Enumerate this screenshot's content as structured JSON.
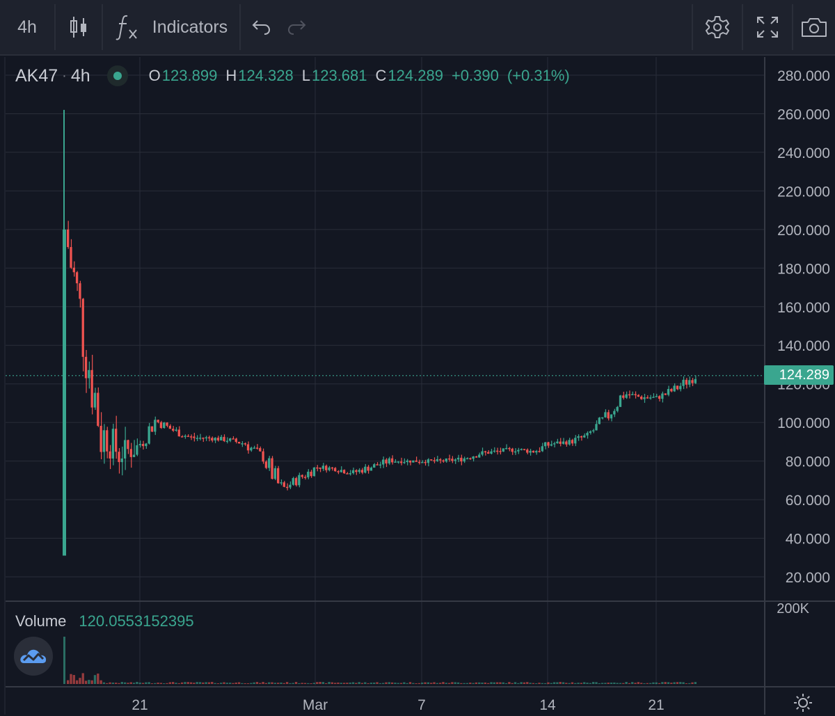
{
  "toolbar": {
    "interval": "4h",
    "indicators_label": "Indicators",
    "icons": [
      "candles-icon",
      "fx-icon",
      "undo-icon",
      "redo-icon",
      "settings-gear-icon",
      "fullscreen-icon",
      "camera-icon"
    ]
  },
  "legend": {
    "symbol": "AK47",
    "separator": "·",
    "timeframe": "4h",
    "open_label": "O",
    "open": "123.899",
    "high_label": "H",
    "high": "124.328",
    "low_label": "L",
    "low": "123.681",
    "close_label": "C",
    "close": "124.289",
    "change": "+0.390",
    "change_pct": "(+0.31%)"
  },
  "volume": {
    "label": "Volume",
    "value": "120.0553152395",
    "scale_label": "200K"
  },
  "last_price": "124.289",
  "colors": {
    "up": "#3aa68f",
    "down": "#ef5350",
    "background": "#131722",
    "toolbar": "#1e222d",
    "grid": "#2a2e39"
  },
  "chart_data": {
    "type": "candlestick",
    "price_axis_labels": [
      "280.000",
      "260.000",
      "240.000",
      "220.000",
      "200.000",
      "180.000",
      "160.000",
      "140.000",
      "120.000",
      "100.000",
      "80.000",
      "60.000",
      "40.000",
      "20.000"
    ],
    "time_axis_labels": [
      "21",
      "Mar",
      "7",
      "14",
      "21"
    ],
    "ylim": [
      20,
      280
    ],
    "last_price": 124.289,
    "approx_close_series": [
      {
        "date": "Feb 16",
        "close": 200
      },
      {
        "date": "Feb 17",
        "close": 148
      },
      {
        "date": "Feb 18",
        "close": 96
      },
      {
        "date": "Feb 19",
        "close": 84
      },
      {
        "date": "Feb 20",
        "close": 87
      },
      {
        "date": "Feb 21",
        "close": 101
      },
      {
        "date": "Feb 22",
        "close": 96
      },
      {
        "date": "Feb 23",
        "close": 92
      },
      {
        "date": "Feb 24",
        "close": 92
      },
      {
        "date": "Feb 25",
        "close": 91
      },
      {
        "date": "Feb 26",
        "close": 89
      },
      {
        "date": "Feb 27",
        "close": 82
      },
      {
        "date": "Feb 28",
        "close": 65
      },
      {
        "date": "Mar 1",
        "close": 71
      },
      {
        "date": "Mar 2",
        "close": 77
      },
      {
        "date": "Mar 3",
        "close": 76
      },
      {
        "date": "Mar 4",
        "close": 74
      },
      {
        "date": "Mar 5",
        "close": 77
      },
      {
        "date": "Mar 6",
        "close": 80
      },
      {
        "date": "Mar 7",
        "close": 80
      },
      {
        "date": "Mar 8",
        "close": 80
      },
      {
        "date": "Mar 9",
        "close": 80
      },
      {
        "date": "Mar 10",
        "close": 81
      },
      {
        "date": "Mar 11",
        "close": 84
      },
      {
        "date": "Mar 12",
        "close": 85
      },
      {
        "date": "Mar 13",
        "close": 86
      },
      {
        "date": "Mar 14",
        "close": 85
      },
      {
        "date": "Mar 15",
        "close": 89
      },
      {
        "date": "Mar 16",
        "close": 90
      },
      {
        "date": "Mar 17",
        "close": 93
      },
      {
        "date": "Mar 18",
        "close": 102
      },
      {
        "date": "Mar 19",
        "close": 115
      },
      {
        "date": "Mar 20",
        "close": 113
      },
      {
        "date": "Mar 21",
        "close": 113
      },
      {
        "date": "Mar 22",
        "close": 118
      },
      {
        "date": "Mar 23",
        "close": 124.289
      }
    ]
  }
}
